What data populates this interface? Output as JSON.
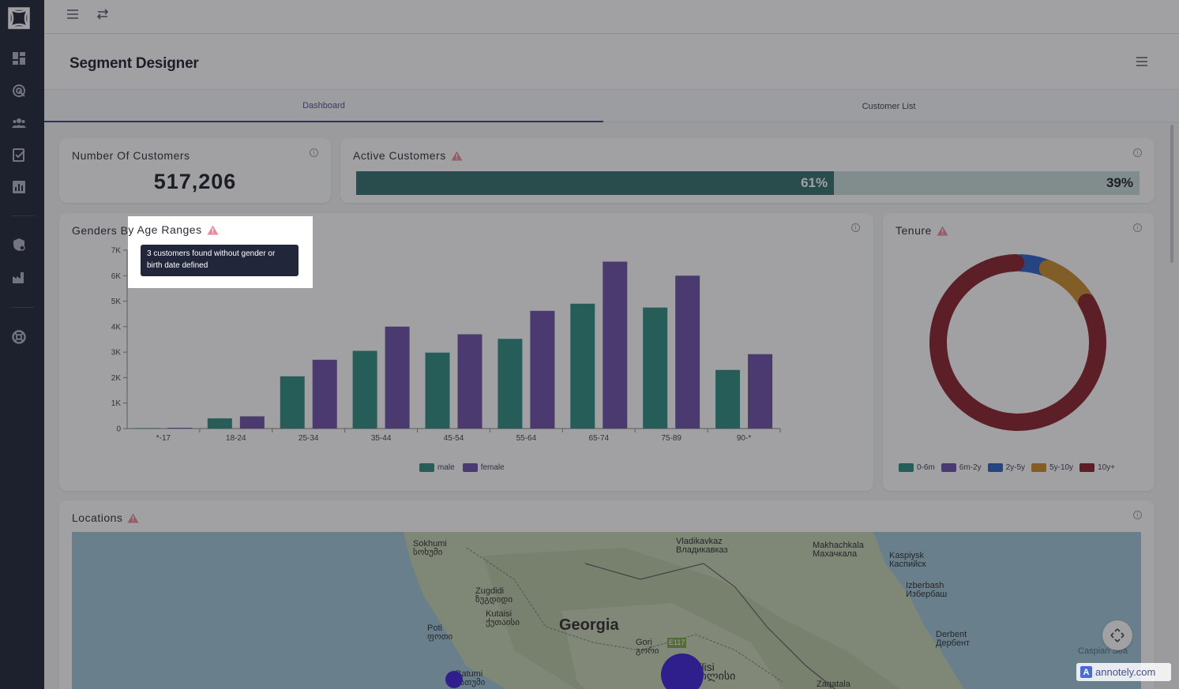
{
  "colors": {
    "sidebar_bg": "#1d2234",
    "male": "#2e8a80",
    "female": "#6b4fa8",
    "tab_accent": "#3b3f87",
    "active_fill": "#2f6e6a",
    "inactive_fill": "#c8dcda"
  },
  "sidebar": {
    "icons": [
      "logo-icon",
      "dashboard-icon",
      "target-icon",
      "people-icon",
      "checklist-icon",
      "report-chart-icon",
      "shield-settings-icon",
      "factory-icon",
      "lifebuoy-icon"
    ]
  },
  "topbar": {
    "icons": [
      "hamburger-icon",
      "swap-arrows-icon"
    ]
  },
  "header": {
    "title": "Segment Designer"
  },
  "tabs": [
    {
      "label": "Dashboard",
      "active": true
    },
    {
      "label": "Customer List",
      "active": false
    }
  ],
  "cards": {
    "customers": {
      "title": "Number Of Customers",
      "value": "517,206"
    },
    "active": {
      "title": "Active Customers",
      "active_label": "61%",
      "inactive_label": "39%",
      "active_fraction": 0.61
    },
    "genders": {
      "title": "Genders By Age Ranges"
    },
    "tenure": {
      "title": "Tenure"
    },
    "locations": {
      "title": "Locations"
    }
  },
  "tooltip": {
    "text": "3 customers found without gender or birth date defined"
  },
  "chart_data": [
    {
      "type": "bar",
      "title": "Genders By Age Ranges",
      "categories": [
        "*-17",
        "18-24",
        "25-34",
        "35-44",
        "45-54",
        "55-64",
        "65-74",
        "75-89",
        "90-*"
      ],
      "series": [
        {
          "name": "male",
          "values": [
            20,
            400,
            2050,
            3050,
            2980,
            3520,
            4900,
            4750,
            2300
          ]
        },
        {
          "name": "female",
          "values": [
            30,
            480,
            2700,
            4000,
            3700,
            4620,
            6550,
            6000,
            2920
          ]
        }
      ],
      "yticks": [
        "0",
        "1K",
        "2K",
        "3K",
        "4K",
        "5K",
        "6K",
        "7K"
      ],
      "ylim": [
        0,
        7000
      ],
      "legend": "bottom"
    },
    {
      "type": "pie",
      "title": "Tenure",
      "labels": [
        "0-6m",
        "6m-2y",
        "2y-5y",
        "5y-10y",
        "10y+"
      ],
      "values": [
        0.2,
        0.3,
        5.5,
        10.5,
        83.5
      ],
      "colors": [
        "#2e8a80",
        "#6b4fa8",
        "#2d5fc7",
        "#c98a2a",
        "#8b1f2a"
      ],
      "legend": "bottom"
    }
  ],
  "map": {
    "labels": [
      "Sokhumi\nსოხუმი",
      "Vladikavkaz\nВладикавказ",
      "Makhachkala\nМахачкала",
      "Kaspiysk\nКаспийск",
      "Izberbash\nИзбербаш",
      "Zugdidi\nზუგდიდი",
      "Kutaisi\nქუთაისი",
      "Georgia",
      "Poti\nფოთი",
      "Gori\nგორი",
      "E117",
      "Tbilisi\nთბილისი",
      "Batumi\nბათუმი",
      "Derbent\nДербент",
      "Caspian Sea",
      "Zaqatala"
    ]
  },
  "watermark": "annotely.com"
}
